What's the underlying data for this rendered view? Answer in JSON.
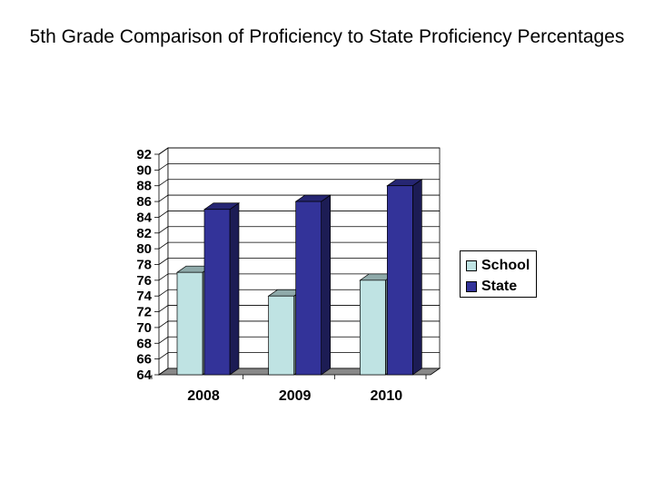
{
  "chart_data": {
    "type": "bar",
    "title": "5th Grade Comparison of Proficiency to State Proficiency Percentages",
    "categories": [
      "2008",
      "2009",
      "2010"
    ],
    "series": [
      {
        "name": "School",
        "values": [
          77,
          74,
          76
        ],
        "color": "#bfe3e3"
      },
      {
        "name": "State",
        "values": [
          85,
          86,
          88
        ],
        "color": "#333399"
      }
    ],
    "ylim": [
      64,
      92
    ],
    "yticks": [
      92,
      90,
      88,
      86,
      84,
      82,
      80,
      78,
      76,
      74,
      72,
      70,
      68,
      66,
      64
    ],
    "grid": true,
    "legend_position": "right",
    "style": "3d-column"
  }
}
